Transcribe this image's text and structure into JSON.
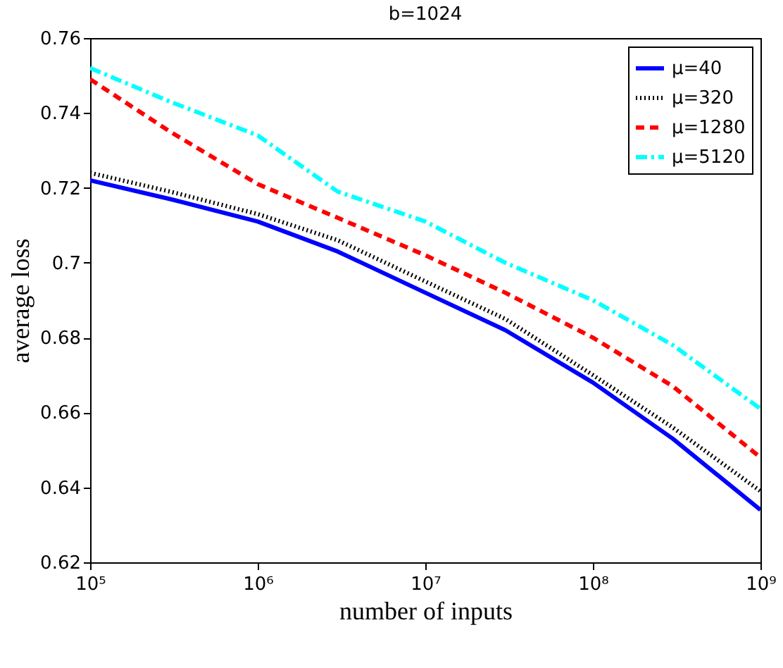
{
  "chart_data": {
    "type": "line",
    "title": "b=1024",
    "xlabel": "number of inputs",
    "ylabel": "average loss",
    "log": "x",
    "x": [
      100000,
      300000,
      1000000,
      3000000,
      10000000,
      30000000,
      100000000,
      300000000,
      1000000000
    ],
    "xlim": [
      100000,
      1000000000
    ],
    "xticks": [
      {
        "value": 100000,
        "label": "10⁵"
      },
      {
        "value": 1000000,
        "label": "10⁶"
      },
      {
        "value": 10000000,
        "label": "10⁷"
      },
      {
        "value": 100000000,
        "label": "10⁸"
      },
      {
        "value": 1000000000,
        "label": "10⁹"
      }
    ],
    "ylim": [
      0.62,
      0.76
    ],
    "yticks": [
      0.62,
      0.64,
      0.66,
      0.68,
      0.7,
      0.72,
      0.74,
      0.76
    ],
    "grid": false,
    "legend": "top right",
    "series": [
      {
        "name": "μ=40",
        "color": "#0000ff",
        "line_style": "solid",
        "values": [
          0.722,
          0.717,
          0.711,
          0.703,
          0.692,
          0.682,
          0.668,
          0.653,
          0.634
        ]
      },
      {
        "name": "μ=320",
        "color": "#000000",
        "line_style": "dotted",
        "values": [
          0.724,
          0.719,
          0.713,
          0.706,
          0.695,
          0.685,
          0.67,
          0.656,
          0.639
        ]
      },
      {
        "name": "μ=1280",
        "color": "#ff0000",
        "line_style": "dashed",
        "values": [
          0.749,
          0.735,
          0.721,
          0.712,
          0.702,
          0.692,
          0.68,
          0.667,
          0.648
        ]
      },
      {
        "name": "μ=5120",
        "color": "#00ffff",
        "line_style": "dashdot",
        "values": [
          0.752,
          0.743,
          0.734,
          0.719,
          0.711,
          0.7,
          0.69,
          0.678,
          0.661
        ]
      }
    ]
  }
}
